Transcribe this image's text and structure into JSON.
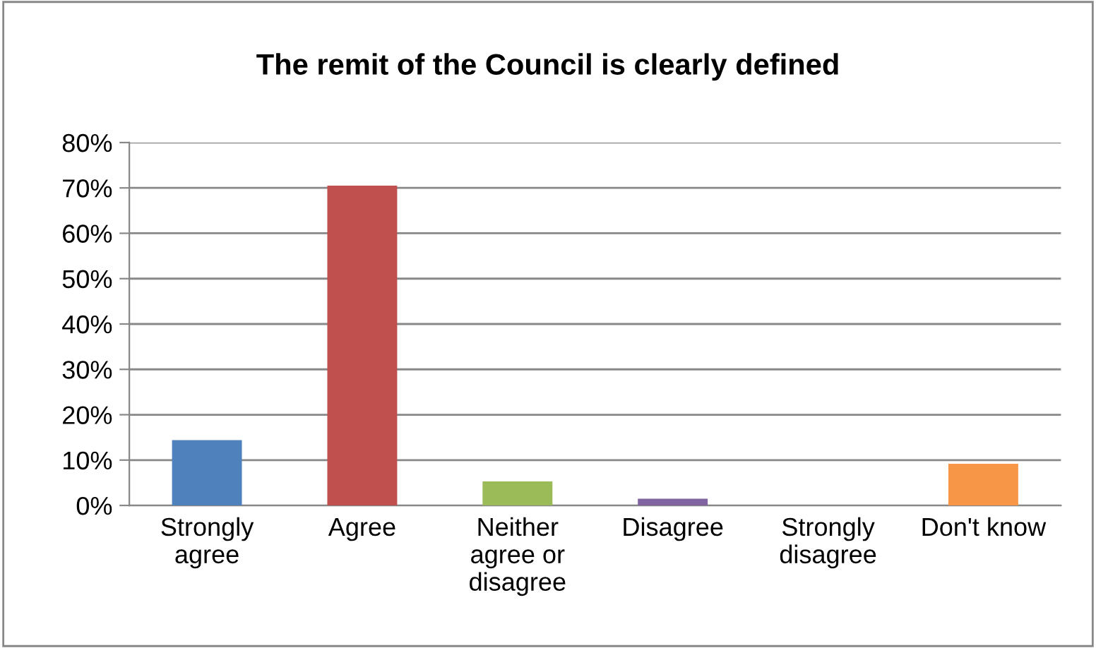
{
  "chart_data": {
    "type": "bar",
    "title": "The remit of the Council is clearly defined",
    "categories": [
      "Strongly\nagree",
      "Agree",
      "Neither\nagree or\ndisagree",
      "Disagree",
      "Strongly\ndisagree",
      "Don't know"
    ],
    "values": [
      14.4,
      70.5,
      5.3,
      1.5,
      0,
      9.2
    ],
    "colors": [
      "#4f81bd",
      "#c0504d",
      "#9bbb59",
      "#8064a2",
      "#4bacc6",
      "#f79646"
    ],
    "ylim": [
      0,
      80
    ],
    "yticks": [
      {
        "value": 0,
        "label": "0%"
      },
      {
        "value": 10,
        "label": "10%"
      },
      {
        "value": 20,
        "label": "20%"
      },
      {
        "value": 30,
        "label": "30%"
      },
      {
        "value": 40,
        "label": "40%"
      },
      {
        "value": 50,
        "label": "50%"
      },
      {
        "value": 60,
        "label": "60%"
      },
      {
        "value": 70,
        "label": "70%"
      },
      {
        "value": 80,
        "label": "80%"
      }
    ],
    "grid": "y",
    "legend": false
  }
}
